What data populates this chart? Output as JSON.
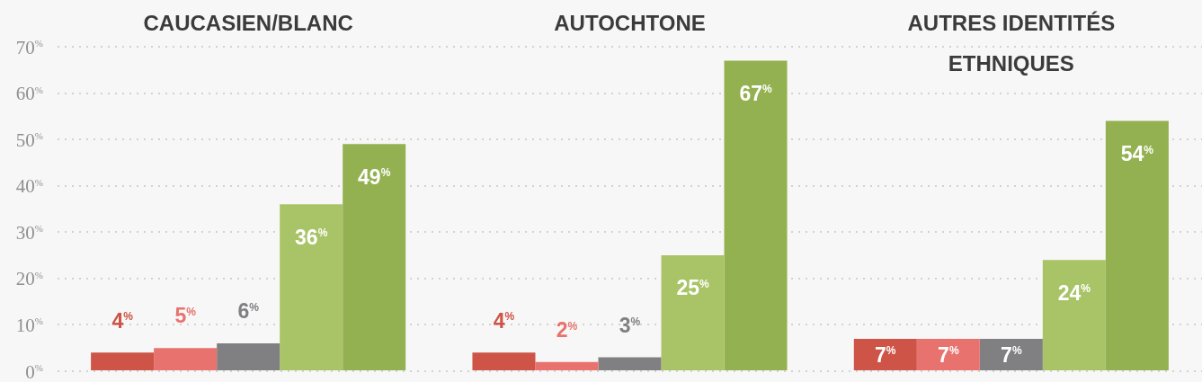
{
  "chart_data": {
    "type": "bar",
    "categories": [
      "CAUCASIEN/BLANC",
      "AUTOCHTONE",
      "AUTRES IDENTITÉS ETHNIQUES"
    ],
    "series": [
      {
        "color": "#cd5446",
        "values": [
          4,
          4,
          7
        ],
        "value_labels": [
          "4$^{%}$",
          "4$^{%}$",
          "7$^{%}$"
        ]
      },
      {
        "color": "#e8736e",
        "values": [
          5,
          2,
          7
        ],
        "value_labels": [
          "5$^{%}$",
          "2$^{%}$",
          "7$^{%}$"
        ]
      },
      {
        "color": "#808083",
        "values": [
          6,
          3,
          7
        ],
        "value_labels": [
          "6$^{%}$",
          "3$^{%}$",
          "7$^{%}$"
        ]
      },
      {
        "color": "#a8c466",
        "values": [
          36,
          25,
          24
        ],
        "value_labels": [
          "36$^{%}$",
          "25$^{%}$",
          "24$^{%}$"
        ]
      },
      {
        "color": "#93b150",
        "values": [
          49,
          67,
          54
        ],
        "value_labels": [
          "49$^{%}$",
          "67$^{%}$",
          "54$^{%}$"
        ]
      }
    ],
    "ylim": [
      0,
      70
    ],
    "yticks": [
      {
        "value": 0,
        "label": "0$^{%}$"
      },
      {
        "value": 10,
        "label": "10$^{%}$"
      },
      {
        "value": 20,
        "label": "20$^{%}$"
      },
      {
        "value": 30,
        "label": "30$^{%}$"
      },
      {
        "value": 40,
        "label": "40$^{%}$"
      },
      {
        "value": 50,
        "label": "50$^{%}$"
      },
      {
        "value": 60,
        "label": "60$^{%}$"
      },
      {
        "value": 70,
        "label": "70$^{%}$"
      }
    ],
    "grid": "y"
  }
}
